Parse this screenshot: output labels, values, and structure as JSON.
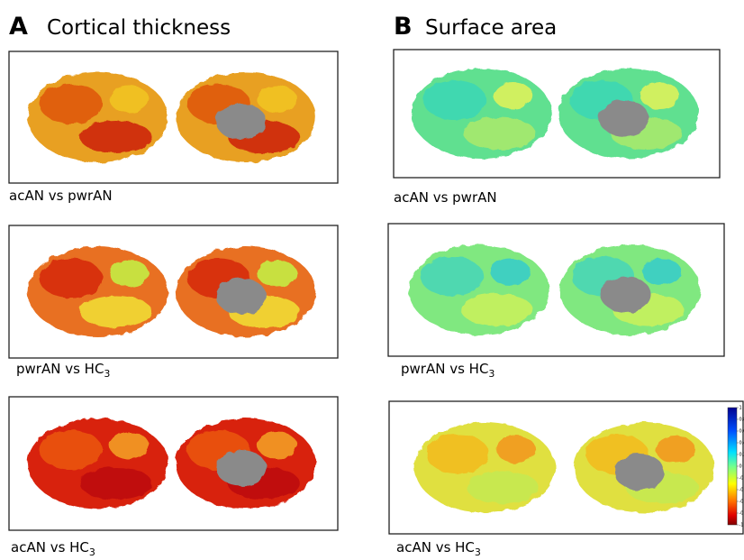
{
  "panels": [
    {
      "letter": "A",
      "title": "Cortical thickness",
      "comparisons": [
        {
          "text": "acAN vs pwrAN"
        },
        {
          "text": "pwrAN vs HC",
          "sub": "3"
        },
        {
          "text": "acAN vs HC",
          "sub": "3"
        }
      ]
    },
    {
      "letter": "B",
      "title": "Surface area",
      "comparisons": [
        {
          "text": "acAN vs pwrAN"
        },
        {
          "text": "pwrAN vs HC",
          "sub": "3"
        },
        {
          "text": "acAN vs HC",
          "sub": "3"
        }
      ]
    }
  ],
  "colorbar": {
    "lim": [
      -1,
      1
    ],
    "ticks": [
      1,
      0.8,
      0.6,
      0.4,
      0.2,
      0,
      -0.2,
      -0.4,
      -0.6,
      -0.8,
      -1
    ]
  }
}
